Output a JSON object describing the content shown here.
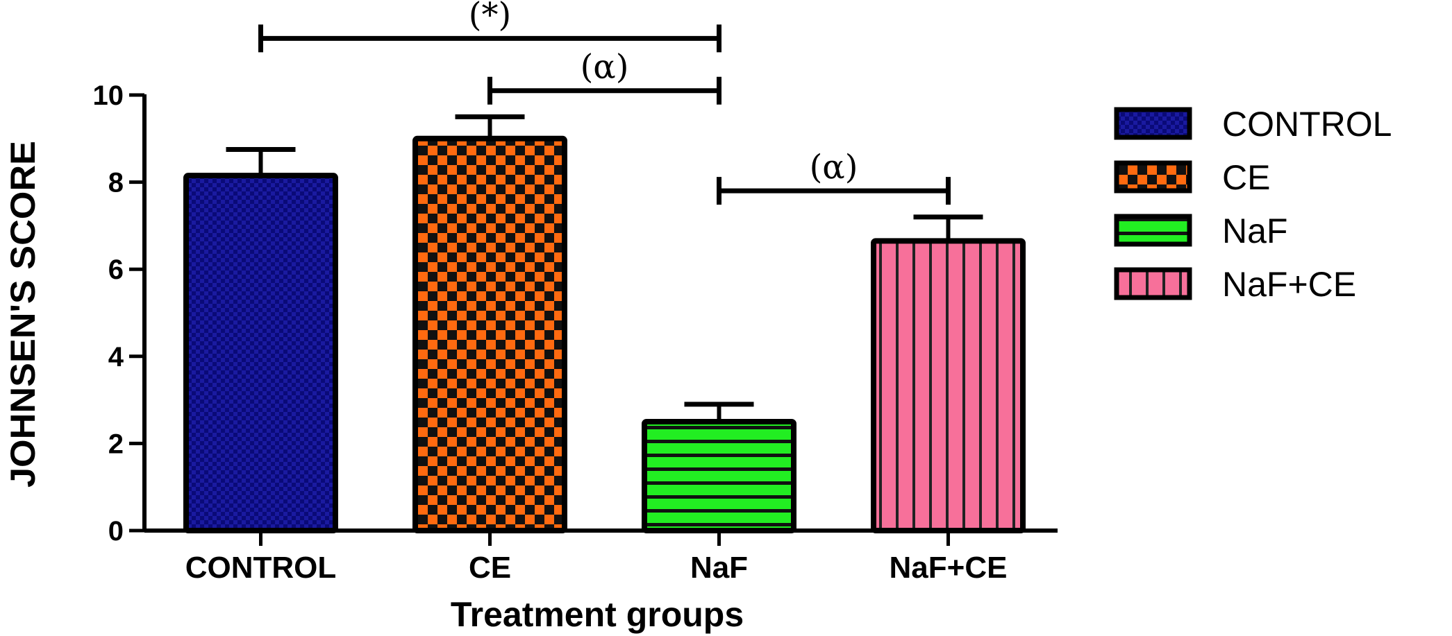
{
  "chart_data": {
    "type": "bar",
    "title": "",
    "xlabel": "Treatment groups",
    "ylabel": "JOHNSEN'S SCORE",
    "ylim": [
      0,
      10
    ],
    "yticks": [
      "0",
      "2",
      "4",
      "6",
      "8",
      "10"
    ],
    "categories": [
      "CONTROL",
      "CE",
      "NaF",
      "NaF+CE"
    ],
    "values": [
      8.15,
      9.0,
      2.5,
      6.65
    ],
    "errors": [
      0.6,
      0.5,
      0.4,
      0.55
    ],
    "colors": [
      "#1a1aa0",
      "#ff6a10",
      "#22ee22",
      "#f7709a"
    ],
    "patterns": [
      "fine-check",
      "checker",
      "horizontal-stripes",
      "vertical-stripes"
    ],
    "legend": {
      "position": "right",
      "entries": [
        "CONTROL",
        "CE",
        "NaF",
        "NaF+CE"
      ]
    },
    "grid": false,
    "annotations": [
      {
        "label": "(*)",
        "from": "CONTROL",
        "to": "NaF",
        "y": 11.3
      },
      {
        "label": "(α)",
        "from": "CE",
        "to": "NaF",
        "y": 10.1
      },
      {
        "label": "(α)",
        "from": "NaF",
        "to": "NaF+CE",
        "y": 7.8
      }
    ]
  }
}
